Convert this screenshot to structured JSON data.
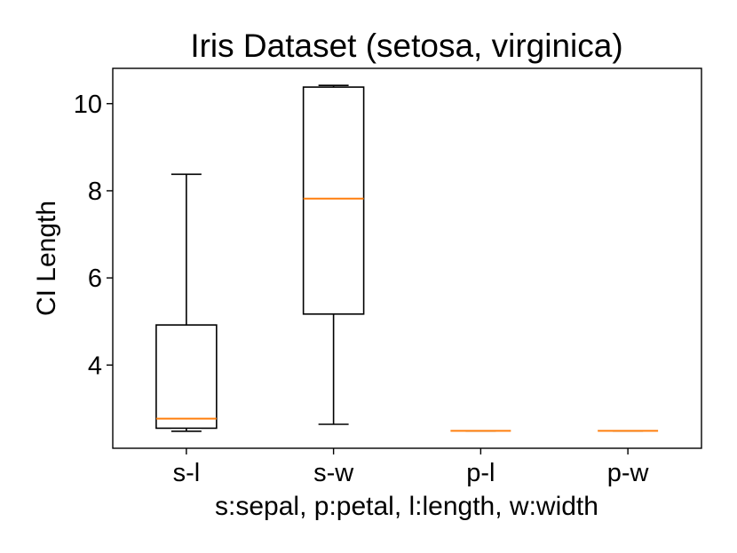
{
  "chart_data": {
    "type": "box",
    "title": "Iris Dataset (setosa, virginica)",
    "xlabel": "s:sepal, p:petal, l:length, w:width",
    "ylabel": "CI Length",
    "categories": [
      "s-l",
      "s-w",
      "p-l",
      "p-w"
    ],
    "boxes": [
      {
        "category": "s-l",
        "whisker_low": 2.48,
        "q1": 2.55,
        "median": 2.77,
        "q3": 4.92,
        "whisker_high": 8.38
      },
      {
        "category": "s-w",
        "whisker_low": 2.64,
        "q1": 5.17,
        "median": 7.82,
        "q3": 10.38,
        "whisker_high": 10.42
      },
      {
        "category": "p-l",
        "whisker_low": 2.49,
        "q1": 2.49,
        "median": 2.49,
        "q3": 2.49,
        "whisker_high": 2.49
      },
      {
        "category": "p-w",
        "whisker_low": 2.49,
        "q1": 2.49,
        "median": 2.49,
        "q3": 2.49,
        "whisker_high": 2.49
      }
    ],
    "yticks": [
      4,
      6,
      8,
      10
    ],
    "ylim": [
      2.09,
      10.81
    ],
    "grid": false,
    "colors": {
      "box": "#000000",
      "median": "#ff7f0e"
    }
  }
}
